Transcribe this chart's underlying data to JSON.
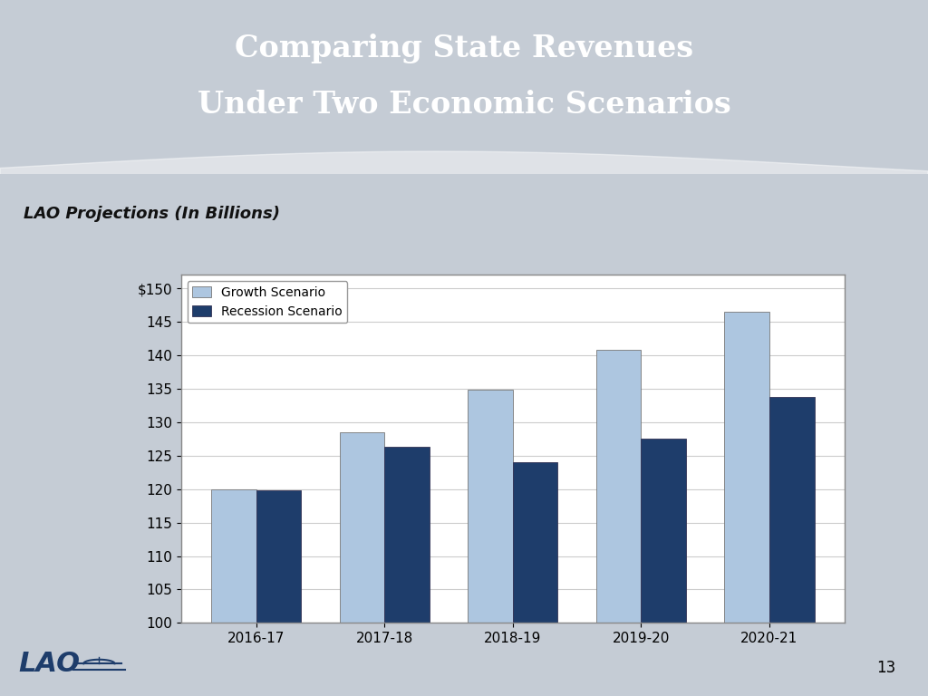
{
  "title_line1": "Comparing State Revenues",
  "title_line2": "Under Two Economic Scenarios",
  "subtitle": "LAO Projections (In Billions)",
  "categories": [
    "2016-17",
    "2017-18",
    "2018-19",
    "2019-20",
    "2020-21"
  ],
  "growth_values": [
    120.0,
    128.5,
    134.8,
    140.8,
    146.5
  ],
  "recession_values": [
    119.8,
    126.3,
    124.0,
    127.5,
    133.7
  ],
  "growth_color": "#adc6e0",
  "recession_color": "#1e3d6b",
  "background_top": "#4d6484",
  "background_bottom": "#c5ccd5",
  "chart_bg": "#ffffff",
  "ylim_min": 100,
  "ylim_max": 152,
  "yticks": [
    100,
    105,
    110,
    115,
    120,
    125,
    130,
    135,
    140,
    145,
    150
  ],
  "legend_growth": "Growth Scenario",
  "legend_recession": "Recession Scenario",
  "page_number": "13",
  "header_color": "#4d6080",
  "wave_color": "#c5ccd5"
}
